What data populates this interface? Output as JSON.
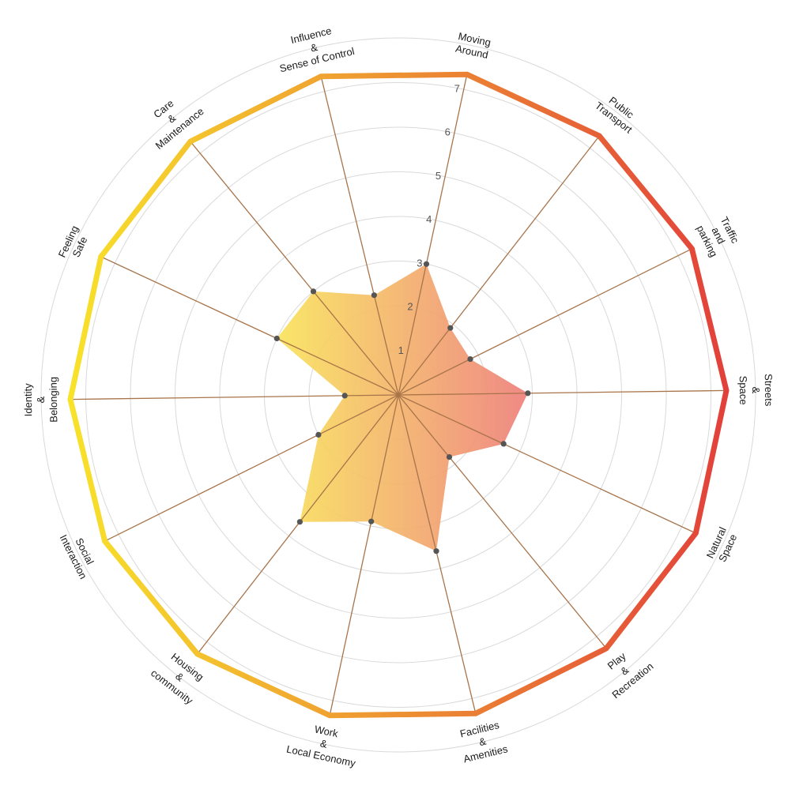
{
  "chart_data": {
    "type": "radar",
    "title": "",
    "scale": {
      "min": 0,
      "max": 7,
      "ticks": [
        1,
        2,
        3,
        4,
        5,
        6,
        7
      ]
    },
    "grid": true,
    "axes": [
      {
        "label_lines": [
          "Moving",
          "Around"
        ],
        "value": 3.0
      },
      {
        "label_lines": [
          "Public",
          "Transport"
        ],
        "value": 1.9
      },
      {
        "label_lines": [
          "Traffic",
          "and",
          "parking"
        ],
        "value": 1.8
      },
      {
        "label_lines": [
          "Streets",
          "&",
          "Space"
        ],
        "value": 2.9
      },
      {
        "label_lines": [
          "Natural",
          "Space"
        ],
        "value": 2.6
      },
      {
        "label_lines": [
          "Play",
          "&",
          "Recreation"
        ],
        "value": 1.8
      },
      {
        "label_lines": [
          "Facilities",
          "&",
          "Amenities"
        ],
        "value": 3.6
      },
      {
        "label_lines": [
          "Work",
          "&",
          "Local Economy"
        ],
        "value": 2.9
      },
      {
        "label_lines": [
          "Housing",
          "&",
          "community"
        ],
        "value": 3.6
      },
      {
        "label_lines": [
          "Social",
          "Interaction"
        ],
        "value": 2.0
      },
      {
        "label_lines": [
          "Identity",
          "&",
          "Belonging"
        ],
        "value": 1.2
      },
      {
        "label_lines": [
          "Feeling",
          "Safe"
        ],
        "value": 3.0
      },
      {
        "label_lines": [
          "Care",
          "&",
          "Maintenance"
        ],
        "value": 3.0
      },
      {
        "label_lines": [
          "Influence",
          "&",
          "Sense of Control"
        ],
        "value": 2.3
      }
    ],
    "colors": {
      "rim_left": "#f8e22a",
      "rim_right": "#e2403a",
      "spoke": "#a8744a",
      "grid": "#d9d9d9",
      "fill_left": "#f9e45c",
      "fill_right": "#ee7f7b",
      "point": "#555555"
    }
  }
}
